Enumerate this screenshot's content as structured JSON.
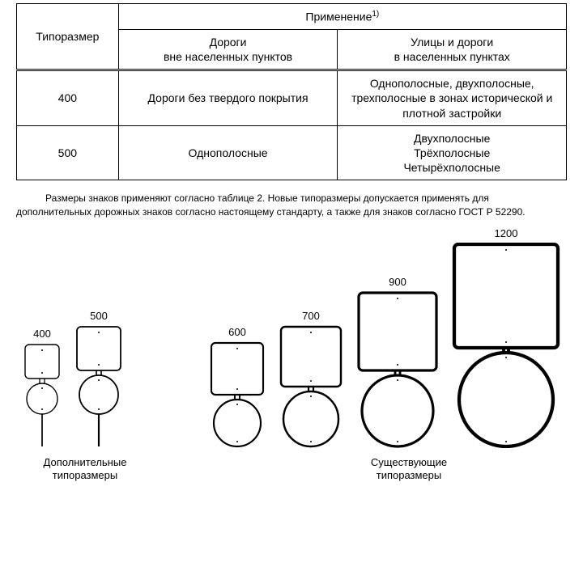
{
  "table": {
    "header_sizetype": "Типоразмер",
    "header_application": "Применение",
    "header_application_sup": "1)",
    "header_roads": "Дороги\nвне населенных пунктов",
    "header_streets": "Улицы и дороги\nв населенных пунктах",
    "rows": [
      {
        "size": "400",
        "roads": "Дороги без твердого покрытия",
        "streets": "Однополосные, двухполосные, трехполосные в зонах исторической и плотной застройки"
      },
      {
        "size": "500",
        "roads": "Однополосные",
        "streets": "Двухполосные\nТрёхполосные\nЧетырёхполосные"
      }
    ]
  },
  "note_text": "Размеры знаков применяют согласно таблице 2. Новые типоразмеры допускается применять для дополнительных дорожных знаков согласно настоящему стандарту, а также для знаков согласно ГОСТ Р 52290.",
  "signs": {
    "stroke_color": "#000000",
    "fill_color": "#ffffff",
    "group_additional": {
      "caption": "Дополнительные\nтипоразмеры",
      "items": [
        {
          "label": "400",
          "square_side": 42,
          "circle_d": 38,
          "post_h": 40
        },
        {
          "label": "500",
          "square_side": 54,
          "circle_d": 48,
          "post_h": 40
        }
      ]
    },
    "group_existing": {
      "caption": "Существующие\nтипоразмеры",
      "items": [
        {
          "label": "600",
          "square_side": 64,
          "circle_d": 58,
          "post_h": 0
        },
        {
          "label": "700",
          "square_side": 74,
          "circle_d": 68,
          "post_h": 0
        },
        {
          "label": "900",
          "square_side": 96,
          "circle_d": 88,
          "post_h": 0
        },
        {
          "label": "1200",
          "square_side": 128,
          "circle_d": 116,
          "post_h": 0
        }
      ]
    }
  }
}
